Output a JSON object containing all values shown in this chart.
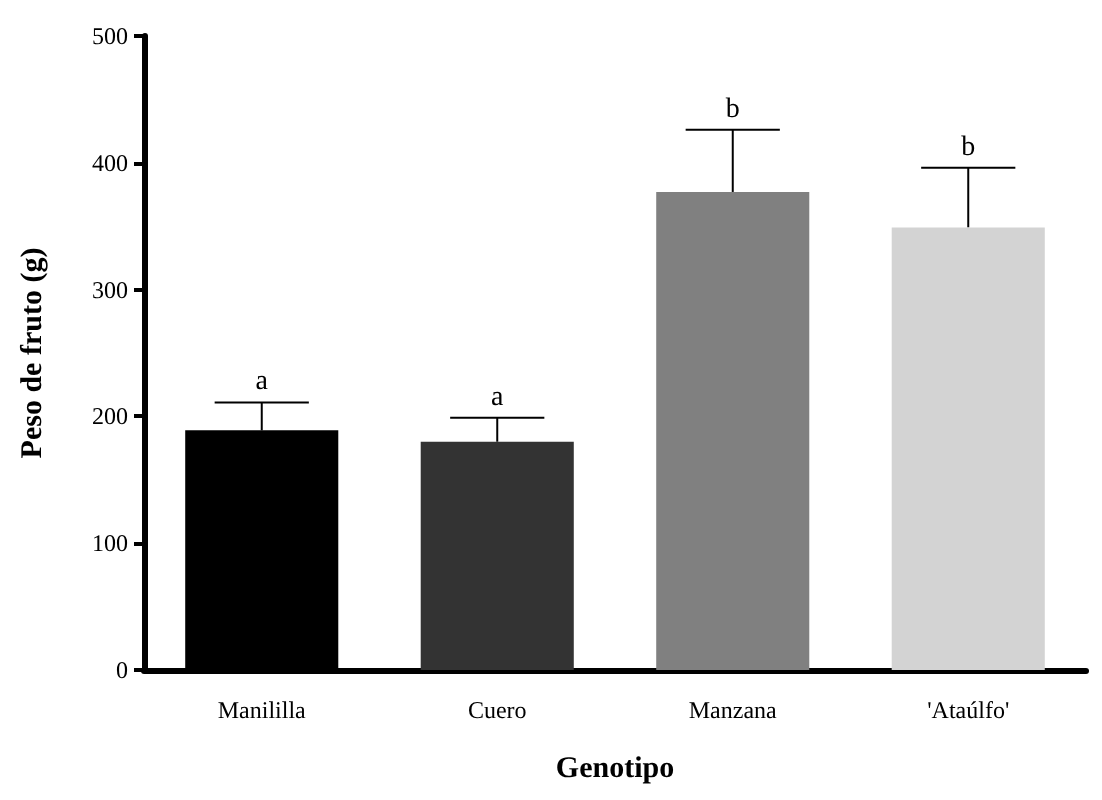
{
  "chart_data": {
    "type": "bar",
    "xlabel": "Genotipo",
    "ylabel": "Peso de fruto (g)",
    "categories": [
      "Manililla",
      "Cuero",
      "Manzana",
      "'Ataúlfo'"
    ],
    "values": [
      189,
      180,
      377,
      349
    ],
    "colors": [
      "#000000",
      "#333333",
      "#808080",
      "#d3d3d3"
    ],
    "errors": [
      [
        189,
        211
      ],
      [
        180,
        199
      ],
      [
        377,
        426
      ],
      [
        349,
        396
      ]
    ],
    "ylim": [
      0,
      500
    ],
    "yticks": [
      0,
      100,
      200,
      300,
      400,
      500
    ],
    "grid": false,
    "annotations": [
      {
        "text": "a",
        "x": "Manililla",
        "y": 211
      },
      {
        "text": "a",
        "x": "Cuero",
        "y": 199
      },
      {
        "text": "b",
        "x": "Manzana",
        "y": 426
      },
      {
        "text": "b",
        "x": "'Ataúlfo'",
        "y": 396
      }
    ]
  }
}
